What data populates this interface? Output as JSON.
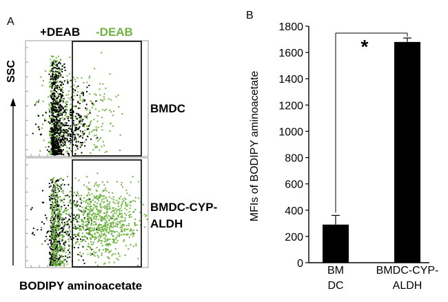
{
  "colors": {
    "with_deab": "#000000",
    "without_deab": "#6db33f",
    "axis": "#000000"
  },
  "panel_a": {
    "label": "A",
    "legend": [
      {
        "label": "+DEAB",
        "color": "#000000"
      },
      {
        "label": "-DEAB",
        "color": "#6db33f"
      }
    ],
    "y_axis_label": "SSC",
    "x_axis_label": "BODIPY aminoacetate",
    "plots": [
      {
        "label": "BMDC"
      },
      {
        "label_lines": [
          "BMDC-CYP-",
          "ALDH"
        ]
      }
    ]
  },
  "panel_b": {
    "label": "B",
    "significance": "*"
  },
  "chart_data": [
    {
      "type": "scatter",
      "title": "",
      "xlabel": "BODIPY aminoacetate",
      "ylabel": "SSC",
      "legend": [
        "+DEAB",
        "-DEAB"
      ],
      "facets": [
        "BMDC",
        "BMDC-CYP-ALDH"
      ],
      "note": "flow cytometry dot plots with a gate on the BODIPY-high region"
    },
    {
      "type": "bar",
      "categories": [
        [
          "BM",
          "DC"
        ],
        [
          "BMDC-CYP-",
          "ALDH"
        ]
      ],
      "values": [
        290,
        1680
      ],
      "errors": [
        70,
        30
      ],
      "ylabel": "MFIs of BODIPY aminoacetate",
      "xlabel": "",
      "ylim": [
        0,
        1800
      ],
      "yticks": [
        "0",
        "200",
        "400",
        "600",
        "800",
        "1000",
        "1200",
        "1400",
        "1600",
        "1800"
      ],
      "significance": "*"
    }
  ]
}
